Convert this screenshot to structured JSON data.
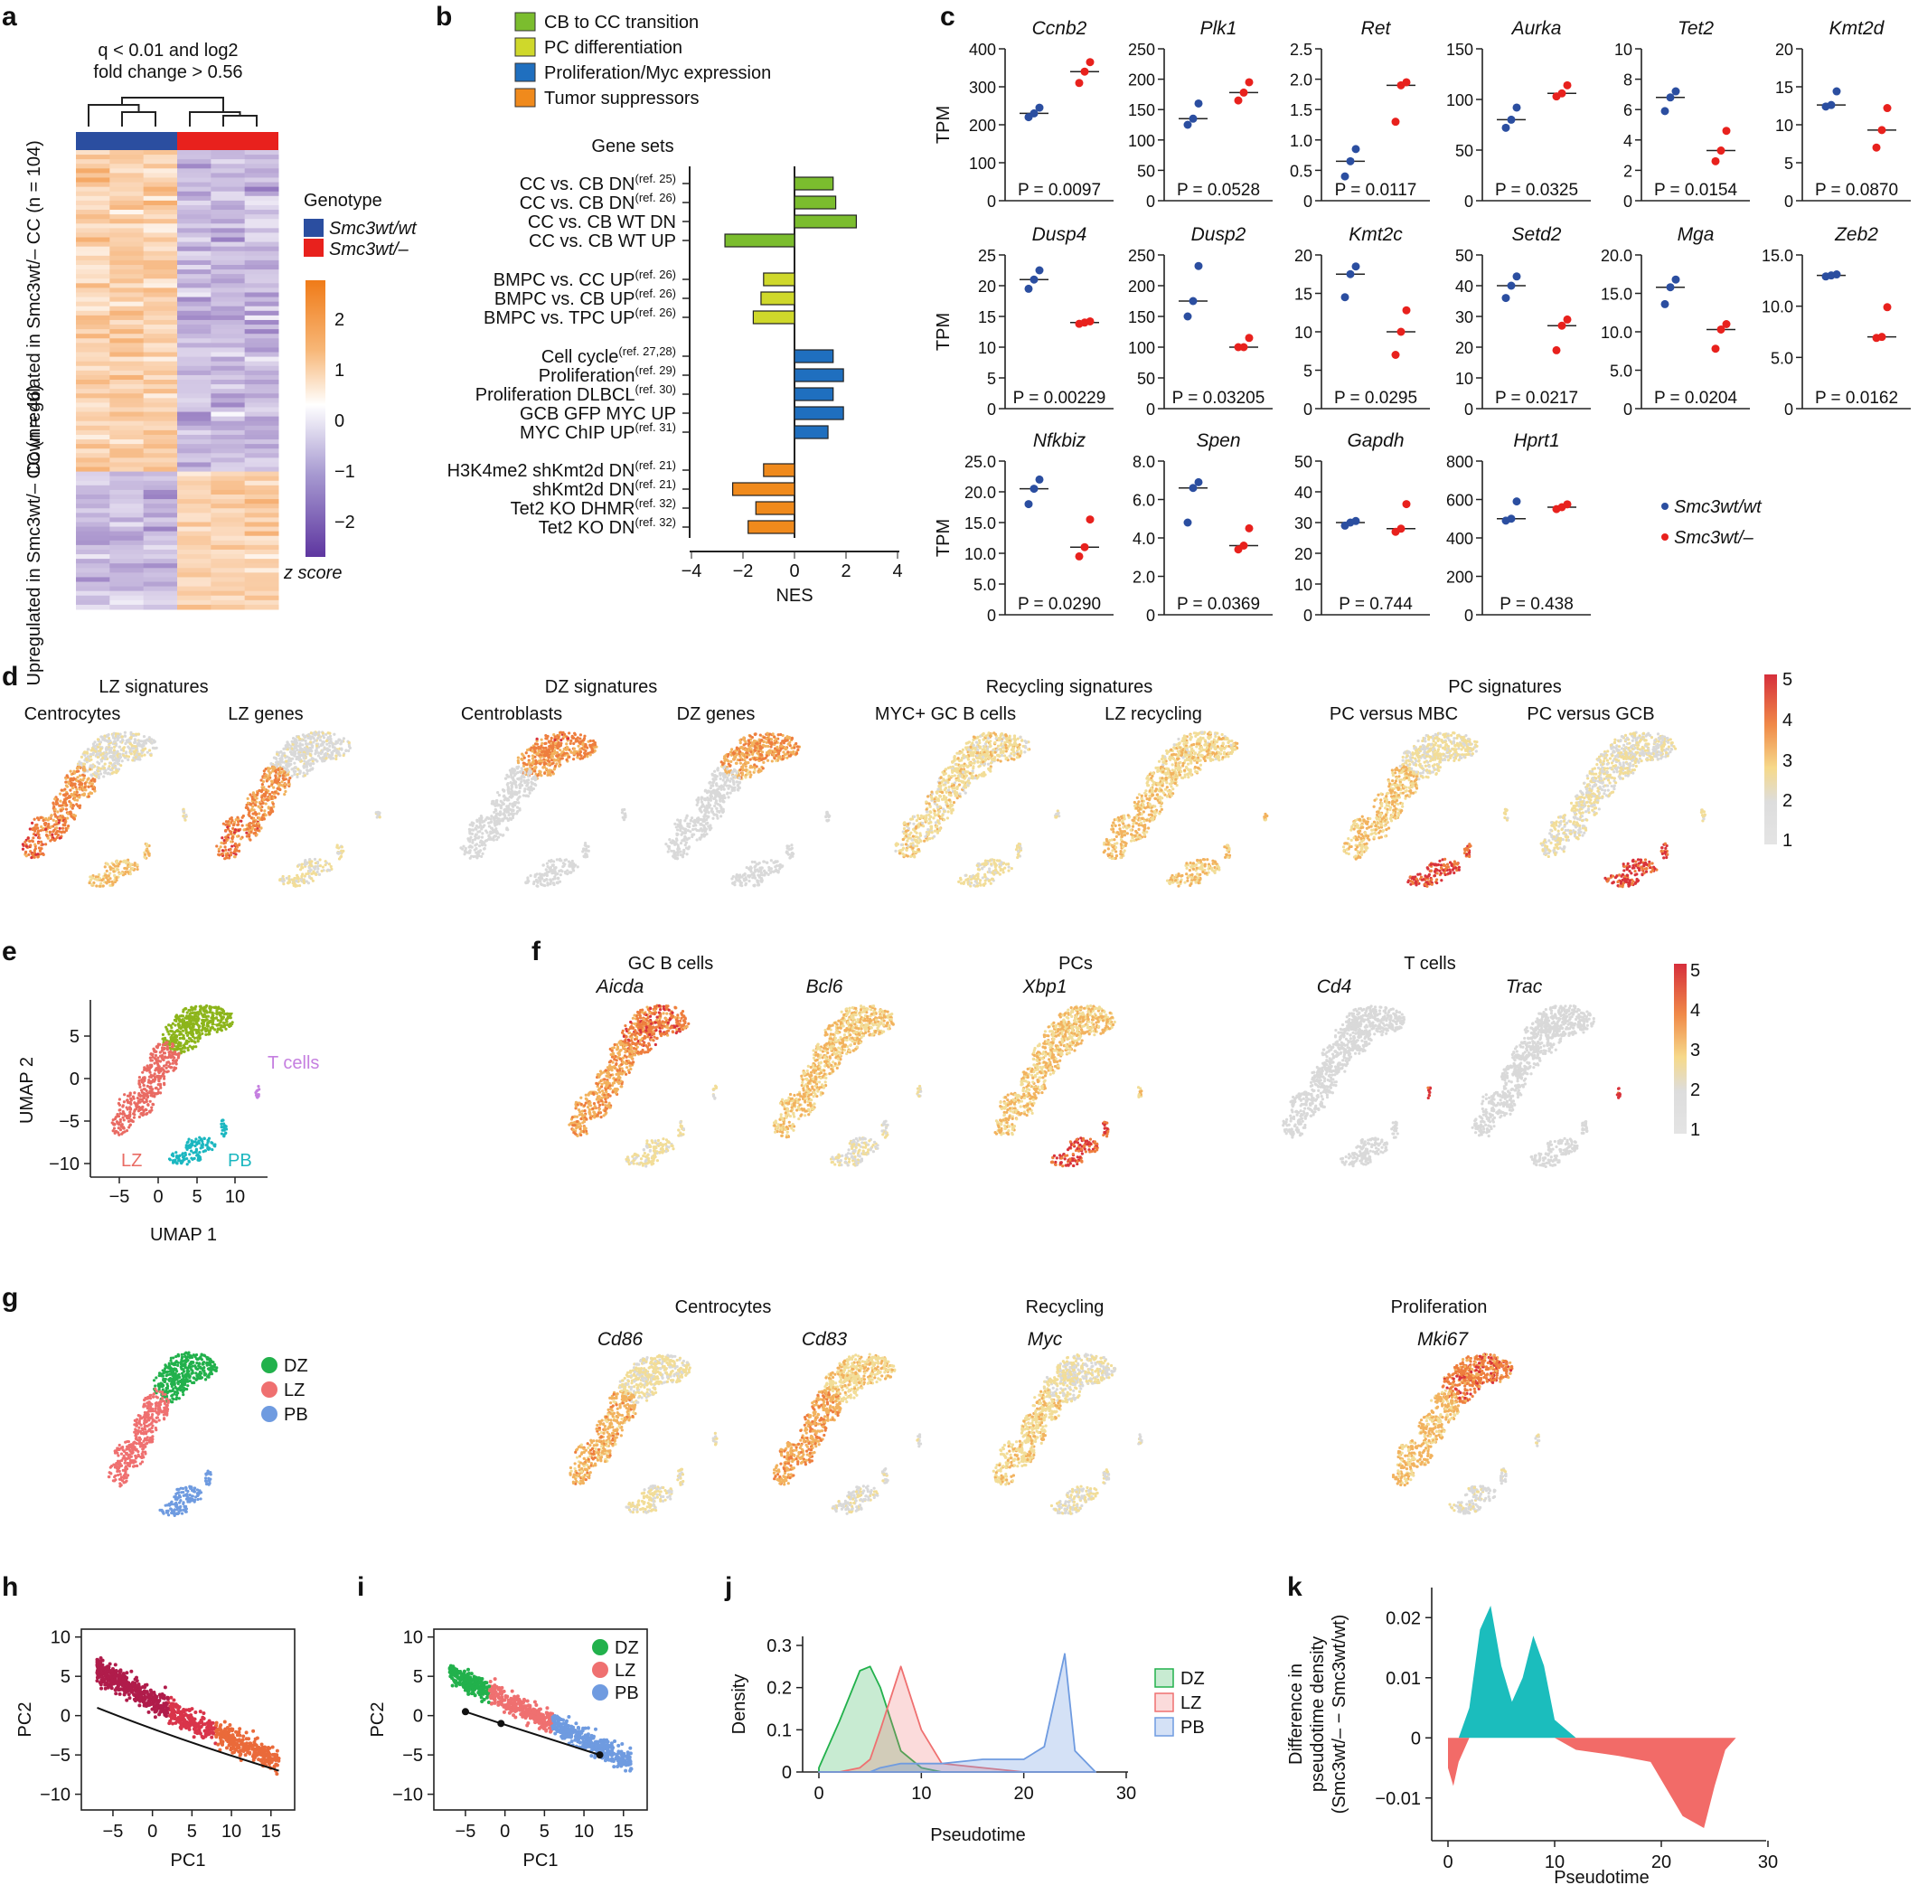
{
  "panels": {
    "a": {
      "letter": "a",
      "title_line1": "q < 0.01 and log2",
      "title_line2": "fold change > 0.56",
      "legend_title": "Genotype",
      "genotypes": [
        {
          "name": "Smc3wt/wt",
          "color": "#2b4ea0"
        },
        {
          "name": "Smc3wt/–",
          "color": "#e8211d"
        }
      ],
      "colorbar_ticks": [
        "2",
        "1",
        "0",
        "−1",
        "−2"
      ],
      "colorbar_label": "z score",
      "row_label_down": "Downregulated in Smc3wt/– CC (n = 104)",
      "row_label_up": "Upregulated in Smc3wt/– CC (n = 46)"
    },
    "b": {
      "letter": "b",
      "legend": [
        {
          "name": "CB to CC transition",
          "color": "#7bbd2e"
        },
        {
          "name": "PC differentiation",
          "color": "#cfd82b"
        },
        {
          "name": "Proliferation/Myc expression",
          "color": "#1f6fbf"
        },
        {
          "name": "Tumor suppressors",
          "color": "#f08a1c"
        }
      ],
      "axis_title": "Gene sets",
      "xlabel": "NES",
      "xticks": [
        "−4",
        "−2",
        "0",
        "2",
        "4"
      ],
      "xlim": [
        -4,
        4
      ],
      "gene_sets": [
        {
          "label": "CC vs. CB DN",
          "ref": "(ref. 25)",
          "nes": 1.5,
          "group": 0
        },
        {
          "label": "CC vs. CB DN",
          "ref": "(ref. 26)",
          "nes": 1.6,
          "group": 0
        },
        {
          "label": "CC vs. CB WT DN",
          "ref": "",
          "nes": 2.4,
          "group": 0
        },
        {
          "label": "CC vs. CB WT UP",
          "ref": "",
          "nes": -2.7,
          "group": 0
        },
        {
          "label": "BMPC vs. CC UP",
          "ref": "(ref. 26)",
          "nes": -1.2,
          "group": 1
        },
        {
          "label": "BMPC vs. CB UP",
          "ref": "(ref. 26)",
          "nes": -1.3,
          "group": 1
        },
        {
          "label": "BMPC vs. TPC UP",
          "ref": "(ref. 26)",
          "nes": -1.6,
          "group": 1
        },
        {
          "label": "Cell cycle",
          "ref": "(ref. 27,28)",
          "nes": 1.5,
          "group": 2
        },
        {
          "label": "Proliferation",
          "ref": "(ref. 29)",
          "nes": 1.9,
          "group": 2
        },
        {
          "label": "Proliferation DLBCL",
          "ref": "(ref. 30)",
          "nes": 1.5,
          "group": 2
        },
        {
          "label": "GCB GFP MYC UP",
          "ref": "",
          "nes": 1.9,
          "group": 2
        },
        {
          "label": "MYC ChIP UP",
          "ref": "(ref. 31)",
          "nes": 1.3,
          "group": 2
        },
        {
          "label": "H3K4me2 shKmt2d DN",
          "ref": "(ref. 21)",
          "nes": -1.2,
          "group": 3
        },
        {
          "label": "shKmt2d DN",
          "ref": "(ref. 21)",
          "nes": -2.4,
          "group": 3
        },
        {
          "label": "Tet2 KO DHMR",
          "ref": "(ref. 32)",
          "nes": -1.5,
          "group": 3
        },
        {
          "label": "Tet2 KO DN",
          "ref": "(ref. 32)",
          "nes": -1.8,
          "group": 3
        }
      ]
    },
    "c": {
      "letter": "c",
      "ylabel": "TPM",
      "legend": [
        {
          "name": "Smc3wt/wt",
          "color": "#2b4ea0"
        },
        {
          "name": "Smc3wt/–",
          "color": "#e8211d"
        }
      ],
      "genes": [
        {
          "gene": "Ccnb2",
          "ymax": 400,
          "ticks": [
            "0",
            "100",
            "200",
            "300",
            "400"
          ],
          "wt": [
            220,
            230,
            245
          ],
          "het": [
            310,
            340,
            365
          ],
          "p": "P = 0.0097"
        },
        {
          "gene": "Plk1",
          "ymax": 250,
          "ticks": [
            "0",
            "50",
            "100",
            "150",
            "200",
            "250"
          ],
          "wt": [
            125,
            135,
            160
          ],
          "het": [
            165,
            178,
            195
          ],
          "p": "P = 0.0528"
        },
        {
          "gene": "Ret",
          "ymax": 2.5,
          "ticks": [
            "0",
            "0.5",
            "1.0",
            "1.5",
            "2.0",
            "2.5"
          ],
          "wt": [
            0.4,
            0.65,
            0.85
          ],
          "het": [
            1.3,
            1.9,
            1.95
          ],
          "p": "P = 0.0117"
        },
        {
          "gene": "Aurka",
          "ymax": 150,
          "ticks": [
            "0",
            "50",
            "100",
            "150"
          ],
          "wt": [
            72,
            80,
            92
          ],
          "het": [
            103,
            106,
            114
          ],
          "p": "P = 0.0325"
        },
        {
          "gene": "Tet2",
          "ymax": 10,
          "ticks": [
            "0",
            "2",
            "4",
            "6",
            "8",
            "10"
          ],
          "wt": [
            5.9,
            6.8,
            7.2
          ],
          "het": [
            2.6,
            3.3,
            4.6
          ],
          "p": "P = 0.0154"
        },
        {
          "gene": "Kmt2d",
          "ymax": 20,
          "ticks": [
            "0",
            "5",
            "10",
            "15",
            "20"
          ],
          "wt": [
            12.4,
            12.6,
            14.4
          ],
          "het": [
            7.0,
            9.3,
            12.2
          ],
          "p": "P = 0.0870"
        },
        {
          "gene": "Dusp4",
          "ymax": 25,
          "ticks": [
            "0",
            "5",
            "10",
            "15",
            "20",
            "25"
          ],
          "wt": [
            19.5,
            21,
            22.5
          ],
          "het": [
            13.8,
            14,
            14.2
          ],
          "p": "P = 0.00229"
        },
        {
          "gene": "Dusp2",
          "ymax": 250,
          "ticks": [
            "0",
            "50",
            "100",
            "150",
            "200",
            "250"
          ],
          "wt": [
            150,
            175,
            232
          ],
          "het": [
            100,
            100,
            115
          ],
          "p": "P = 0.03205"
        },
        {
          "gene": "Kmt2c",
          "ymax": 20,
          "ticks": [
            "0",
            "5",
            "10",
            "15",
            "20"
          ],
          "wt": [
            14.5,
            17.5,
            18.5
          ],
          "het": [
            7,
            10,
            12.8
          ],
          "p": "P = 0.0295"
        },
        {
          "gene": "Setd2",
          "ymax": 50,
          "ticks": [
            "0",
            "10",
            "20",
            "30",
            "40",
            "50"
          ],
          "wt": [
            36,
            40,
            43
          ],
          "het": [
            19,
            27,
            29
          ],
          "p": "P = 0.0217"
        },
        {
          "gene": "Mga",
          "ymax": 20,
          "ticks": [
            "0",
            "5.0",
            "10.0",
            "15.0",
            "20.0"
          ],
          "wt": [
            13.6,
            15.8,
            16.8
          ],
          "het": [
            7.8,
            10.3,
            11.0
          ],
          "p": "P = 0.0204"
        },
        {
          "gene": "Zeb2",
          "ymax": 15,
          "ticks": [
            "0",
            "5.0",
            "10.0",
            "15.0"
          ],
          "wt": [
            12.9,
            13.0,
            13.1
          ],
          "het": [
            6.9,
            7.0,
            9.9
          ],
          "p": "P = 0.0162"
        },
        {
          "gene": "Nfkbiz",
          "ymax": 25,
          "ticks": [
            "0",
            "5.0",
            "10.0",
            "15.0",
            "20.0",
            "25.0"
          ],
          "wt": [
            18,
            20.5,
            22
          ],
          "het": [
            9.5,
            11,
            15.5
          ],
          "p": "P = 0.0290"
        },
        {
          "gene": "Spen",
          "ymax": 8,
          "ticks": [
            "0",
            "2.0",
            "4.0",
            "6.0",
            "8.0"
          ],
          "wt": [
            4.8,
            6.6,
            6.9
          ],
          "het": [
            3.4,
            3.6,
            4.5
          ],
          "p": "P = 0.0369"
        },
        {
          "gene": "Gapdh",
          "ymax": 50,
          "ticks": [
            "0",
            "10",
            "20",
            "30",
            "40",
            "50"
          ],
          "wt": [
            29,
            30,
            30.5
          ],
          "het": [
            27,
            28,
            36
          ],
          "p": "P = 0.744"
        },
        {
          "gene": "Hprt1",
          "ymax": 800,
          "ticks": [
            "0",
            "200",
            "400",
            "600",
            "800"
          ],
          "wt": [
            490,
            500,
            590
          ],
          "het": [
            550,
            560,
            575
          ],
          "p": "P = 0.438"
        }
      ]
    },
    "d": {
      "letter": "d",
      "groups": [
        {
          "title": "LZ signatures",
          "maps": [
            "Centrocytes",
            "LZ genes"
          ]
        },
        {
          "title": "DZ signatures",
          "maps": [
            "Centroblasts",
            "DZ genes"
          ]
        },
        {
          "title": "Recycling signatures",
          "maps": [
            "MYC+ GC B cells",
            "LZ recycling"
          ]
        },
        {
          "title": "PC signatures",
          "maps": [
            "PC versus MBC",
            "PC versus GCB"
          ]
        }
      ],
      "colorbar_ticks": [
        "5",
        "4",
        "3",
        "2",
        "1"
      ]
    },
    "e": {
      "letter": "e",
      "xlabel": "UMAP 1",
      "ylabel": "UMAP 2",
      "xticks": [
        "−5",
        "0",
        "5",
        "10"
      ],
      "yticks": [
        "5",
        "0",
        "−5",
        "−10"
      ],
      "clusters": [
        {
          "name": "DZ",
          "color": "#8db51b"
        },
        {
          "name": "LZ",
          "color": "#e96b63"
        },
        {
          "name": "PB",
          "color": "#1bb7c0"
        },
        {
          "name": "T cells",
          "color": "#c57fe0"
        }
      ]
    },
    "f": {
      "letter": "f",
      "groups": [
        {
          "title": "GC B cells",
          "genes": [
            "Aicda",
            "Bcl6"
          ]
        },
        {
          "title": "PCs",
          "genes": [
            "Xbp1"
          ]
        },
        {
          "title": "T cells",
          "genes": [
            "Cd4",
            "Trac"
          ]
        }
      ],
      "colorbar_ticks": [
        "5",
        "4",
        "3",
        "2",
        "1"
      ]
    },
    "g": {
      "letter": "g",
      "legend": [
        {
          "name": "DZ",
          "color": "#22b14c"
        },
        {
          "name": "LZ",
          "color": "#ef7070"
        },
        {
          "name": "PB",
          "color": "#6f9be0"
        }
      ],
      "groups": [
        {
          "title": "Centrocytes",
          "genes": [
            "Cd86",
            "Cd83"
          ]
        },
        {
          "title": "Recycling",
          "genes": [
            "Myc"
          ]
        },
        {
          "title": "Proliferation",
          "genes": [
            "Mki67"
          ]
        }
      ]
    },
    "h": {
      "letter": "h",
      "xlabel": "PC1",
      "ylabel": "PC2",
      "xticks": [
        "−5",
        "0",
        "5",
        "10",
        "15"
      ],
      "yticks": [
        "10",
        "5",
        "0",
        "−5",
        "−10"
      ]
    },
    "i": {
      "letter": "i",
      "xlabel": "PC1",
      "ylabel": "PC2",
      "xticks": [
        "−5",
        "0",
        "5",
        "10",
        "15"
      ],
      "yticks": [
        "10",
        "5",
        "0",
        "−5",
        "−10"
      ],
      "legend": [
        {
          "name": "DZ",
          "color": "#22b14c"
        },
        {
          "name": "LZ",
          "color": "#ef7070"
        },
        {
          "name": "PB",
          "color": "#6f9be0"
        }
      ]
    },
    "j": {
      "letter": "j",
      "xlabel": "Pseudotime",
      "ylabel": "Density",
      "xticks": [
        "0",
        "10",
        "20",
        "30"
      ],
      "yticks": [
        "0",
        "0.1",
        "0.2",
        "0.3"
      ],
      "legend": [
        {
          "name": "DZ",
          "color": "#22b14c"
        },
        {
          "name": "LZ",
          "color": "#ef7070"
        },
        {
          "name": "PB",
          "color": "#6f9be0"
        }
      ]
    },
    "k": {
      "letter": "k",
      "xlabel": "Pseudotime",
      "ylabel_line1": "Difference in",
      "ylabel_line2": "pseudotime density",
      "ylabel_line3": "(Smc3wt/– − Smc3wt/wt)",
      "xticks": [
        "0",
        "10",
        "20",
        "30"
      ],
      "yticks": [
        "0.02",
        "0.01",
        "0",
        "−0.01"
      ]
    }
  },
  "chart_data": [
    {
      "type": "bar",
      "title": "Gene sets",
      "xlabel": "NES",
      "categories": [
        "CC vs. CB DN (ref. 25)",
        "CC vs. CB DN (ref. 26)",
        "CC vs. CB WT DN",
        "CC vs. CB WT UP",
        "BMPC vs. CC UP (ref. 26)",
        "BMPC vs. CB UP (ref. 26)",
        "BMPC vs. TPC UP (ref. 26)",
        "Cell cycle (ref. 27,28)",
        "Proliferation (ref. 29)",
        "Proliferation DLBCL (ref. 30)",
        "GCB GFP MYC UP",
        "MYC ChIP UP (ref. 31)",
        "H3K4me2 shKmt2d DN (ref. 21)",
        "shKmt2d DN (ref. 21)",
        "Tet2 KO DHMR (ref. 32)",
        "Tet2 KO DN (ref. 32)"
      ],
      "values": [
        1.5,
        1.6,
        2.4,
        -2.7,
        -1.2,
        -1.3,
        -1.6,
        1.5,
        1.9,
        1.5,
        1.9,
        1.3,
        -1.2,
        -2.4,
        -1.5,
        -1.8
      ],
      "xlim": [
        -4,
        4
      ]
    },
    {
      "type": "area",
      "xlabel": "Pseudotime",
      "ylabel": "Density",
      "x": [
        0,
        2,
        4,
        5,
        6,
        8,
        10,
        12,
        16,
        20,
        22,
        24,
        25,
        27
      ],
      "series": [
        {
          "name": "DZ",
          "values": [
            0.01,
            0.12,
            0.24,
            0.25,
            0.2,
            0.05,
            0.01,
            0,
            0,
            0,
            0,
            0,
            0,
            0
          ]
        },
        {
          "name": "LZ",
          "values": [
            0,
            0,
            0.01,
            0.03,
            0.1,
            0.25,
            0.1,
            0.02,
            0.01,
            0,
            0,
            0,
            0,
            0
          ]
        },
        {
          "name": "PB",
          "values": [
            0,
            0,
            0,
            0,
            0.01,
            0.02,
            0.02,
            0.02,
            0.03,
            0.03,
            0.06,
            0.28,
            0.05,
            0
          ]
        }
      ],
      "xlim": [
        0,
        30
      ],
      "ylim": [
        0,
        0.3
      ]
    },
    {
      "type": "area",
      "xlabel": "Pseudotime",
      "x": [
        0,
        0.5,
        1,
        2,
        3,
        4,
        5,
        6,
        7,
        8,
        9,
        10,
        12,
        16,
        19,
        21,
        22,
        23,
        24,
        25,
        26,
        27
      ],
      "values": [
        -0.005,
        -0.008,
        -0.004,
        0.005,
        0.018,
        0.022,
        0.012,
        0.006,
        0.01,
        0.017,
        0.012,
        0.003,
        -0.002,
        -0.003,
        -0.004,
        -0.01,
        -0.013,
        -0.014,
        -0.015,
        -0.008,
        -0.002,
        0
      ],
      "xlim": [
        0,
        30
      ],
      "ylim": [
        -0.015,
        0.025
      ]
    }
  ]
}
